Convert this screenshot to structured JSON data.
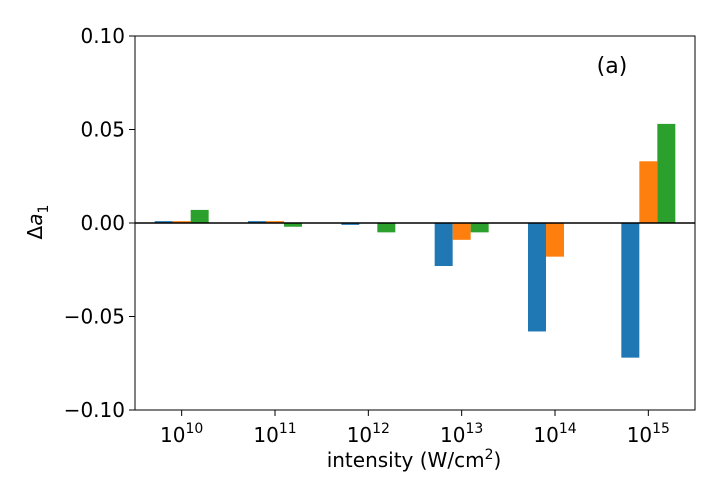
{
  "chart_data": {
    "type": "bar",
    "title": "",
    "annotation": "(a)",
    "xlabel": "intensity (W/cm²)",
    "xlabel_parts": {
      "base": "intensity (W/cm",
      "sup": "2",
      "tail": ")"
    },
    "ylabel": "Δa₁",
    "ylabel_parts": {
      "delta": "Δ",
      "var": "a",
      "sub": "1"
    },
    "categories": [
      "10^10",
      "10^11",
      "10^12",
      "10^13",
      "10^14",
      "10^15"
    ],
    "category_labels": [
      {
        "base": "10",
        "exp": "10"
      },
      {
        "base": "10",
        "exp": "11"
      },
      {
        "base": "10",
        "exp": "12"
      },
      {
        "base": "10",
        "exp": "13"
      },
      {
        "base": "10",
        "exp": "14"
      },
      {
        "base": "10",
        "exp": "15"
      }
    ],
    "series": [
      {
        "color": "#1f77b4",
        "values": [
          0.001,
          0.001,
          -0.001,
          -0.023,
          -0.058,
          -0.072
        ]
      },
      {
        "color": "#ff7f0e",
        "values": [
          0.001,
          0.001,
          0.0,
          -0.009,
          -0.018,
          0.033
        ]
      },
      {
        "color": "#2ca02c",
        "values": [
          0.007,
          -0.002,
          -0.005,
          -0.005,
          0.0,
          0.053
        ]
      }
    ],
    "ylim": [
      -0.1,
      0.1
    ],
    "yticks": [
      -0.1,
      -0.05,
      0.0,
      0.05,
      0.1
    ],
    "ytick_labels": [
      "−0.10",
      "−0.05",
      "0.00",
      "0.05",
      "0.10"
    ],
    "grid": false,
    "zero_line": true,
    "legend": "none"
  }
}
